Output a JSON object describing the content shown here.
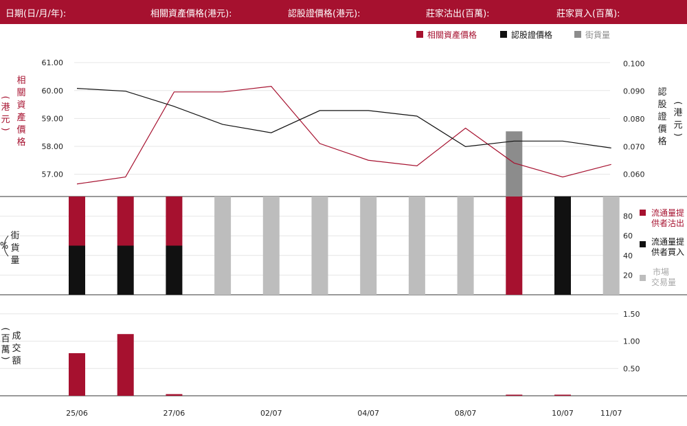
{
  "header": {
    "fields": [
      "日期(日/月/年):",
      "相關資產價格(港元):",
      "認股證價格(港元):",
      "莊家沽出(百萬):",
      "莊家買入(百萬):"
    ]
  },
  "colors": {
    "brand": "#a6112f",
    "warrant": "#111111",
    "gray_dark": "#8c8c8c",
    "gray_light": "#bdbdbd",
    "grid": "#e6e6e6"
  },
  "chart_data": [
    {
      "type": "line",
      "legend": [
        "相關資產價格",
        "認股證價格",
        "街貨量"
      ],
      "legend_position": "top-right",
      "ylabel_left": "相關資產價格（港元）",
      "ylabel_right": "認股證價格（港元）",
      "y_left_ticks": [
        "61.00",
        "60.00",
        "59.00",
        "58.00",
        "57.00"
      ],
      "y_right_ticks": [
        "0.100",
        "0.090",
        "0.080",
        "0.070",
        "0.060"
      ],
      "ylim_left": [
        56.2,
        61.3
      ],
      "ylim_right": [
        0.052,
        0.1033
      ],
      "x_count": 12,
      "underlying": [
        56.65,
        56.9,
        59.95,
        59.95,
        60.15,
        58.1,
        57.5,
        57.3,
        58.65,
        57.4,
        56.9,
        57.35
      ],
      "warrant": [
        0.091,
        0.09,
        0.0845,
        0.078,
        0.075,
        0.083,
        0.083,
        0.081,
        0.07,
        0.072,
        0.072,
        0.0695
      ],
      "outstanding_bar": {
        "index": 9,
        "value": 0.0755
      },
      "grid": true
    },
    {
      "type": "bar",
      "ylabel": "街貨量（%）",
      "y_ticks": [
        "80",
        "60",
        "40",
        "20"
      ],
      "ylim": [
        0,
        100
      ],
      "legend": [
        "流通量提供者沽出",
        "流通量提供者買入",
        "市場交易量"
      ],
      "legend_position": "right",
      "bars": [
        {
          "kind": "split",
          "sell": 50,
          "buy": 50
        },
        {
          "kind": "split",
          "sell": 50,
          "buy": 50
        },
        {
          "kind": "split",
          "sell": 50,
          "buy": 50
        },
        {
          "kind": "market",
          "value": 100
        },
        {
          "kind": "market",
          "value": 100
        },
        {
          "kind": "market",
          "value": 100
        },
        {
          "kind": "market",
          "value": 100
        },
        {
          "kind": "market",
          "value": 100
        },
        {
          "kind": "market",
          "value": 100
        },
        {
          "kind": "sell",
          "value": 100
        },
        {
          "kind": "buy",
          "value": 100
        },
        {
          "kind": "market",
          "value": 100
        }
      ]
    },
    {
      "type": "bar",
      "ylabel": "成交額（百萬）",
      "y_ticks": [
        "1.50",
        "1.00",
        "0.50"
      ],
      "ylim": [
        0,
        1.85
      ],
      "values": [
        0.78,
        1.13,
        0.03,
        0,
        0,
        0,
        0,
        0,
        0,
        0.02,
        0.02,
        0
      ],
      "x_labels": [
        "25/06",
        "",
        "27/06",
        "",
        "02/07",
        "",
        "04/07",
        "",
        "08/07",
        "",
        "10/07",
        "11/07"
      ]
    }
  ]
}
